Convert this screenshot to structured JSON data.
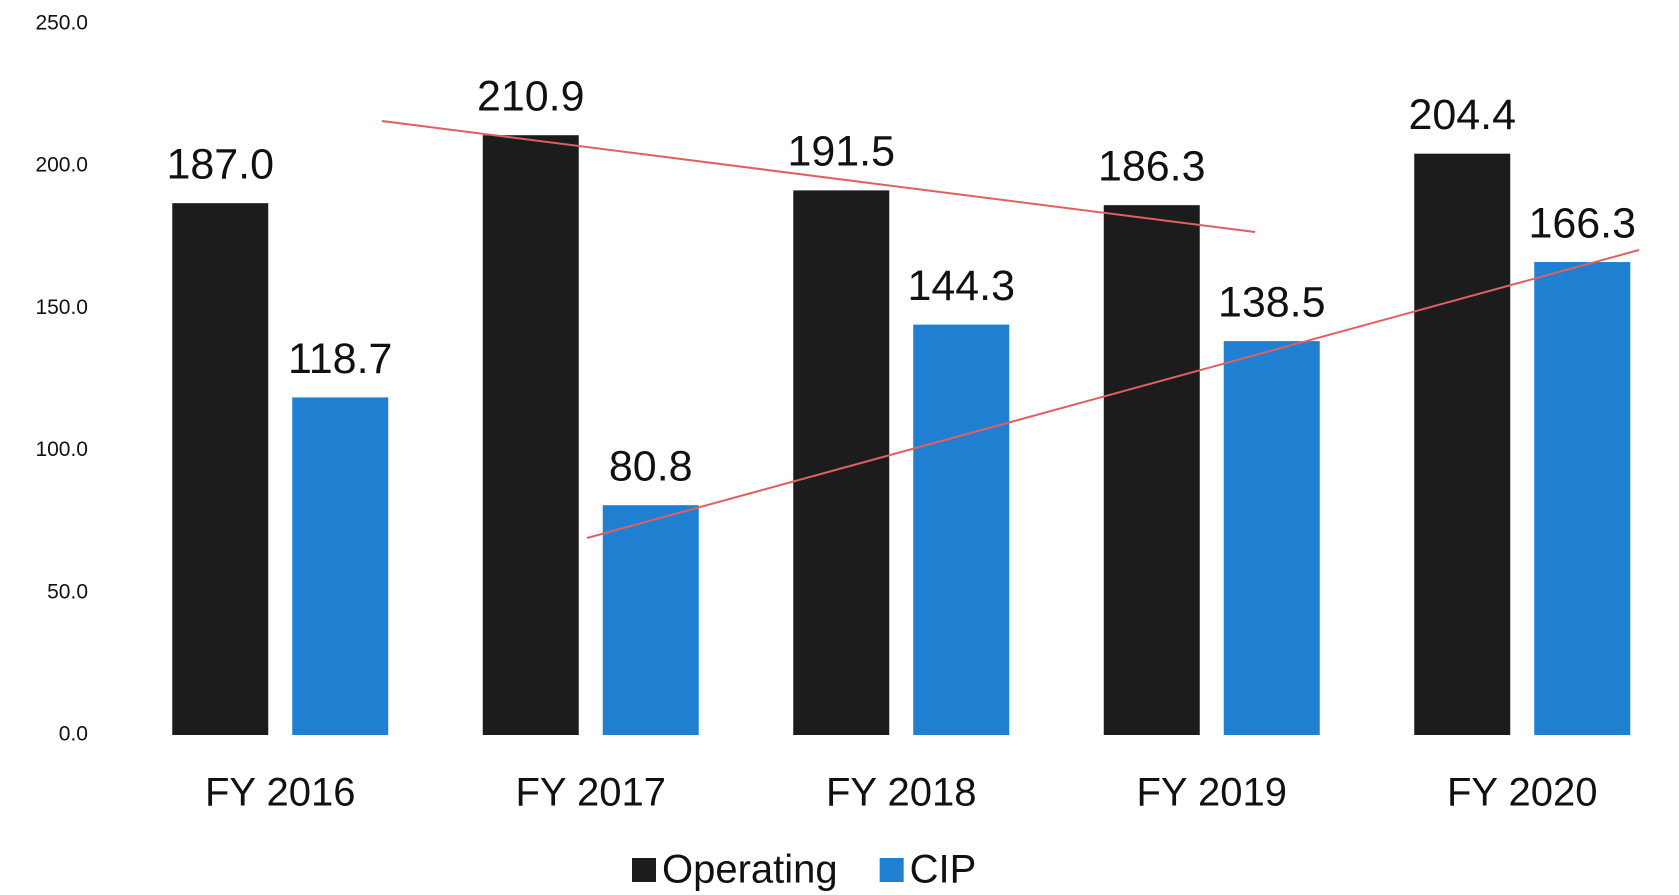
{
  "chart_data": {
    "type": "bar",
    "categories": [
      "FY 2016",
      "FY 2017",
      "FY 2018",
      "FY 2019",
      "FY 2020"
    ],
    "series": [
      {
        "name": "Operating",
        "color": "#1c1c1c",
        "values": [
          187.0,
          210.9,
          191.5,
          186.3,
          204.4
        ],
        "value_labels": [
          "187.0",
          "210.9",
          "191.5",
          "186.3",
          "204.4"
        ]
      },
      {
        "name": "CIP",
        "color": "#1f7fd0",
        "values": [
          118.7,
          80.8,
          144.3,
          138.5,
          166.3
        ],
        "value_labels": [
          "118.7",
          "80.8",
          "144.3",
          "138.5",
          "166.3"
        ]
      }
    ],
    "ylim": [
      0,
      250
    ],
    "yticks": [
      {
        "value": 0,
        "label": "0.0"
      },
      {
        "value": 50,
        "label": "50.0"
      },
      {
        "value": 100,
        "label": "100.0"
      },
      {
        "value": 150,
        "label": "150.0"
      },
      {
        "value": 200,
        "label": "200.0"
      },
      {
        "value": 250,
        "label": "250.0"
      }
    ],
    "legend": "bottom"
  }
}
